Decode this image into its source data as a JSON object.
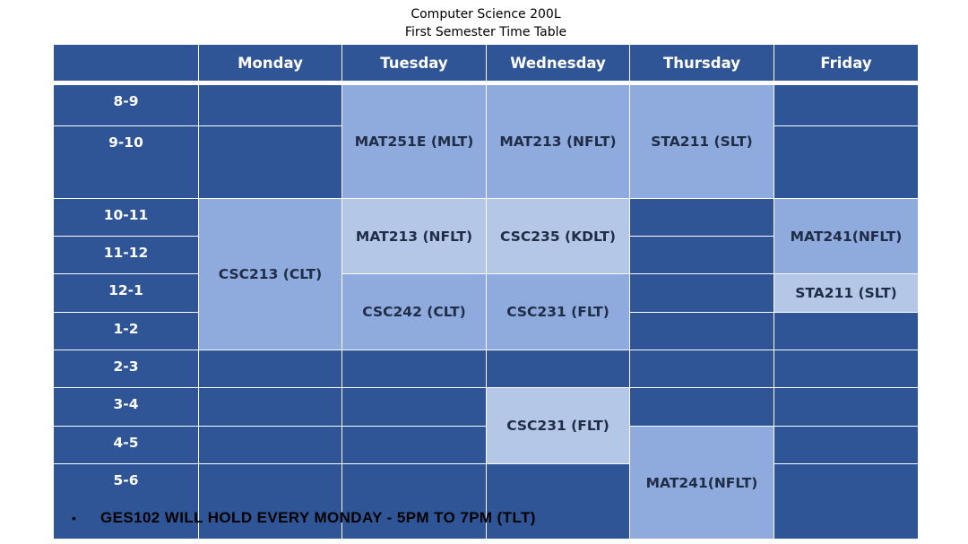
{
  "document": {
    "title_line1": "Computer Science 200L",
    "title_line2": "First Semester Time Table"
  },
  "timetable": {
    "days": [
      "Monday",
      "Tuesday",
      "Wednesday",
      "Thursday",
      "Friday"
    ],
    "times": [
      "8-9",
      "9-10",
      "10-11",
      "11-12",
      "12-1",
      "1-2",
      "2-3",
      "3-4",
      "4-5",
      "5-6"
    ],
    "classes": [
      {
        "day": "Tuesday",
        "time": "8-10",
        "label": "MAT251E (MLT)"
      },
      {
        "day": "Wednesday",
        "time": "8-10",
        "label": "MAT213 (NFLT)"
      },
      {
        "day": "Thursday",
        "time": "8-10",
        "label": "STA211 (SLT)"
      },
      {
        "day": "Monday",
        "time": "10-2",
        "label": "CSC213 (CLT)"
      },
      {
        "day": "Tuesday",
        "time": "10-12",
        "label": "MAT213 (NFLT)"
      },
      {
        "day": "Wednesday",
        "time": "10-12",
        "label": "CSC235 (KDLT)"
      },
      {
        "day": "Friday",
        "time": "10-12",
        "label": "MAT241(NFLT)"
      },
      {
        "day": "Friday",
        "time": "12-1",
        "label": "STA211 (SLT)"
      },
      {
        "day": "Tuesday",
        "time": "12-2",
        "label": "CSC242 (CLT)"
      },
      {
        "day": "Wednesday",
        "time": "12-2",
        "label": "CSC231 (FLT)"
      },
      {
        "day": "Wednesday",
        "time": "3-5",
        "label": "CSC231 (FLT)"
      },
      {
        "day": "Thursday",
        "time": "4-6",
        "label": "MAT241(NFLT)"
      }
    ]
  },
  "note": {
    "bullet": "•",
    "text": "GES102 WILL HOLD EVERY MONDAY - 5PM TO 7PM (TLT)"
  },
  "colors": {
    "header_dark": "#2f5597",
    "class_medium": "#8faadc",
    "class_light": "#b4c7e7"
  }
}
